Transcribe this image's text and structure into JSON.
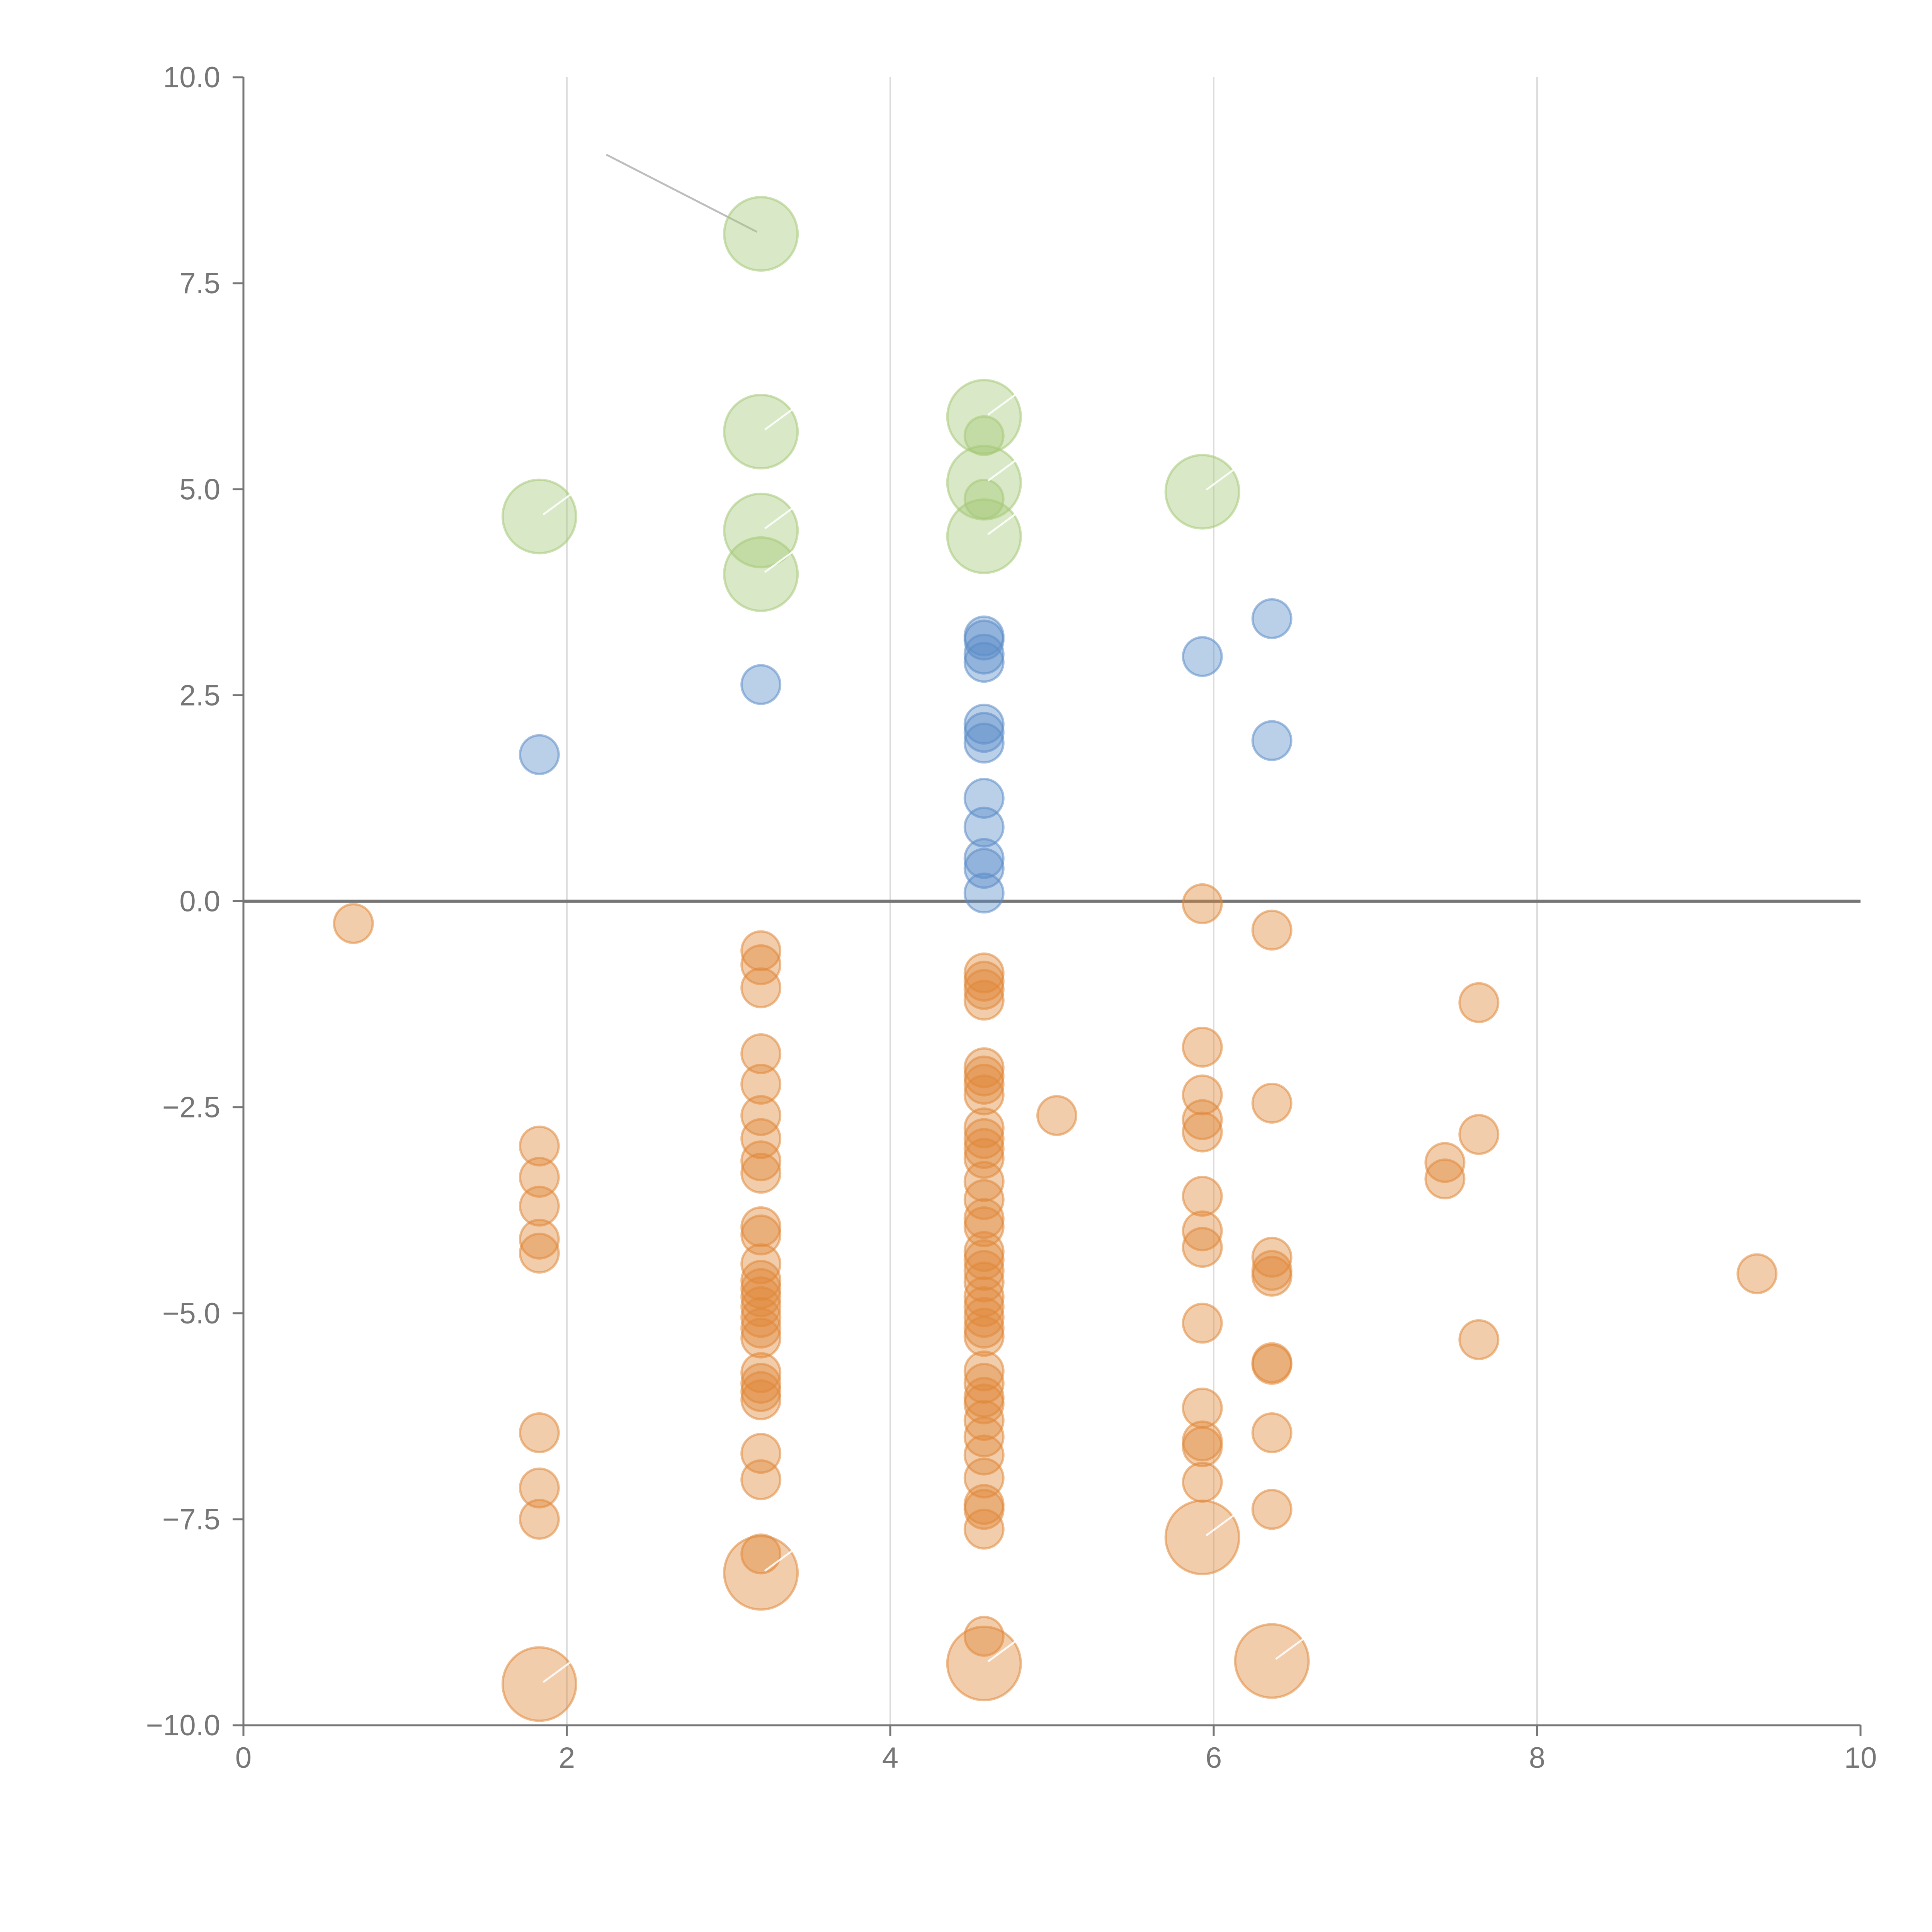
{
  "chart_data": {
    "type": "scatter",
    "title": "",
    "xlabel": "",
    "ylabel": "",
    "xlim": [
      0,
      10
    ],
    "ylim": [
      -10,
      10
    ],
    "x_ticks": [
      "0",
      "2",
      "4",
      "6",
      "8",
      "10"
    ],
    "y_ticks": [
      "10.0",
      "7.5",
      "5.0",
      "2.5",
      "0.0",
      "−2.5",
      "−5.0",
      "−7.5",
      "−10.0"
    ],
    "grid": "vertical",
    "legend": "none",
    "zero_line": true,
    "series": [
      {
        "color": "#e0883a",
        "points": [
          [
            0.68,
            -0.27
          ],
          [
            1.83,
            -2.97
          ],
          [
            1.83,
            -3.35
          ],
          [
            1.83,
            -3.7
          ],
          [
            1.83,
            -4.1
          ],
          [
            1.83,
            -4.27
          ],
          [
            1.83,
            -6.45
          ],
          [
            1.83,
            -7.12
          ],
          [
            1.83,
            -7.5
          ],
          [
            3.2,
            -0.6
          ],
          [
            3.2,
            -0.77
          ],
          [
            3.2,
            -1.05
          ],
          [
            3.2,
            -1.85
          ],
          [
            3.2,
            -2.22
          ],
          [
            3.2,
            -2.6
          ],
          [
            3.2,
            -2.88
          ],
          [
            3.2,
            -3.15
          ],
          [
            3.2,
            -3.3
          ],
          [
            3.2,
            -3.95
          ],
          [
            3.2,
            -4.05
          ],
          [
            3.2,
            -4.4
          ],
          [
            3.2,
            -4.6
          ],
          [
            3.2,
            -4.7
          ],
          [
            3.2,
            -4.8
          ],
          [
            3.2,
            -4.92
          ],
          [
            3.2,
            -5.05
          ],
          [
            3.2,
            -5.18
          ],
          [
            3.2,
            -5.3
          ],
          [
            3.2,
            -5.72
          ],
          [
            3.2,
            -5.85
          ],
          [
            3.2,
            -5.95
          ],
          [
            3.2,
            -6.05
          ],
          [
            3.2,
            -6.7
          ],
          [
            3.2,
            -7.02
          ],
          [
            3.2,
            -7.92
          ],
          [
            4.58,
            -0.87
          ],
          [
            4.58,
            -0.97
          ],
          [
            4.58,
            -1.07
          ],
          [
            4.58,
            -1.2
          ],
          [
            4.58,
            -2.02
          ],
          [
            4.58,
            -2.12
          ],
          [
            4.58,
            -2.22
          ],
          [
            4.58,
            -2.35
          ],
          [
            4.58,
            -2.75
          ],
          [
            4.58,
            -2.88
          ],
          [
            4.58,
            -3.0
          ],
          [
            4.58,
            -3.12
          ],
          [
            4.58,
            -3.4
          ],
          [
            4.58,
            -3.62
          ],
          [
            4.58,
            -3.85
          ],
          [
            4.58,
            -3.95
          ],
          [
            4.58,
            -4.25
          ],
          [
            4.58,
            -4.35
          ],
          [
            4.58,
            -4.48
          ],
          [
            4.58,
            -4.62
          ],
          [
            4.58,
            -4.8
          ],
          [
            4.58,
            -4.92
          ],
          [
            4.58,
            -5.05
          ],
          [
            4.58,
            -5.18
          ],
          [
            4.58,
            -5.28
          ],
          [
            4.58,
            -5.7
          ],
          [
            4.58,
            -5.85
          ],
          [
            4.58,
            -6.02
          ],
          [
            4.58,
            -6.1
          ],
          [
            4.58,
            -6.3
          ],
          [
            4.58,
            -6.5
          ],
          [
            4.58,
            -6.72
          ],
          [
            4.58,
            -7.0
          ],
          [
            4.58,
            -7.32
          ],
          [
            4.58,
            -7.38
          ],
          [
            4.58,
            -7.62
          ],
          [
            4.58,
            -8.92
          ],
          [
            5.03,
            -2.6
          ],
          [
            5.93,
            -0.03
          ],
          [
            5.93,
            -1.77
          ],
          [
            5.93,
            -2.35
          ],
          [
            5.93,
            -2.65
          ],
          [
            5.93,
            -2.8
          ],
          [
            5.93,
            -3.58
          ],
          [
            5.93,
            -4.0
          ],
          [
            5.93,
            -4.2
          ],
          [
            5.93,
            -5.12
          ],
          [
            5.93,
            -6.15
          ],
          [
            5.93,
            -6.55
          ],
          [
            5.93,
            -6.62
          ],
          [
            5.93,
            -7.05
          ],
          [
            6.36,
            -0.35
          ],
          [
            6.36,
            -2.45
          ],
          [
            6.36,
            -4.32
          ],
          [
            6.36,
            -4.48
          ],
          [
            6.36,
            -4.55
          ],
          [
            6.36,
            -5.6
          ],
          [
            6.36,
            -5.62
          ],
          [
            6.36,
            -6.45
          ],
          [
            6.36,
            -7.38
          ],
          [
            7.43,
            -3.17
          ],
          [
            7.43,
            -3.37
          ],
          [
            7.64,
            -1.23
          ],
          [
            7.64,
            -2.83
          ],
          [
            7.64,
            -5.32
          ],
          [
            9.36,
            -4.52
          ]
        ]
      },
      {
        "color": "#e0883a",
        "size": "large",
        "points": [
          [
            1.83,
            -9.5
          ],
          [
            3.2,
            -8.15
          ],
          [
            4.58,
            -9.25
          ],
          [
            5.93,
            -7.72
          ],
          [
            6.36,
            -9.22
          ]
        ]
      },
      {
        "color": "#5b8cc7",
        "points": [
          [
            1.83,
            1.78
          ],
          [
            3.2,
            2.63
          ],
          [
            4.58,
            3.22
          ],
          [
            4.58,
            3.17
          ],
          [
            4.58,
            3.0
          ],
          [
            4.58,
            2.9
          ],
          [
            4.58,
            2.15
          ],
          [
            4.58,
            2.05
          ],
          [
            4.58,
            1.92
          ],
          [
            4.58,
            1.25
          ],
          [
            4.58,
            0.9
          ],
          [
            4.58,
            0.52
          ],
          [
            4.58,
            0.4
          ],
          [
            4.58,
            0.1
          ],
          [
            5.93,
            2.97
          ],
          [
            6.36,
            3.43
          ],
          [
            6.36,
            1.95
          ]
        ]
      },
      {
        "color": "#a5c878",
        "size": "large",
        "points": [
          [
            1.83,
            4.67
          ],
          [
            3.2,
            8.1
          ],
          [
            3.2,
            5.7
          ],
          [
            3.2,
            4.5
          ],
          [
            3.2,
            3.97
          ],
          [
            4.58,
            5.88
          ],
          [
            4.58,
            5.08
          ],
          [
            4.58,
            4.43
          ],
          [
            5.93,
            4.97
          ]
        ]
      },
      {
        "color": "#a5c878",
        "points": [
          [
            4.58,
            5.65
          ],
          [
            4.58,
            4.88
          ]
        ]
      }
    ]
  }
}
